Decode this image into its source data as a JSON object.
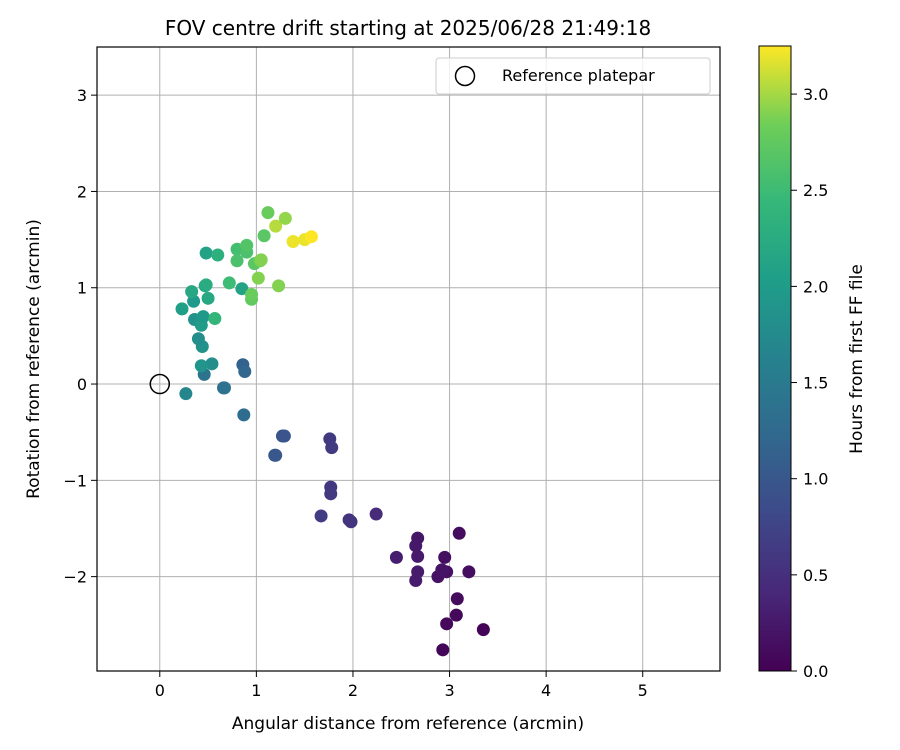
{
  "chart_data": {
    "type": "scatter",
    "title": "FOV centre drift starting at 2025/06/28 21:49:18",
    "xlabel": "Angular distance from reference (arcmin)",
    "ylabel": "Rotation from reference (arcmin)",
    "xlim": [
      -0.65,
      5.8
    ],
    "ylim": [
      -2.98,
      3.5
    ],
    "xticks": [
      0,
      1,
      2,
      3,
      4,
      5
    ],
    "xtick_labels": [
      "0",
      "1",
      "2",
      "3",
      "4",
      "5"
    ],
    "yticks": [
      -2,
      -1,
      0,
      1,
      2,
      3
    ],
    "ytick_labels": [
      "−2",
      "−1",
      "0",
      "1",
      "2",
      "3"
    ],
    "grid": true,
    "legend": {
      "label": "Reference platepar",
      "position": "top-right"
    },
    "reference_point": {
      "x": 0,
      "y": 0
    },
    "colorbar": {
      "label": "Hours from first FF file",
      "range": [
        0,
        3.25
      ],
      "ticks": [
        "0.0",
        "0.5",
        "1.0",
        "1.5",
        "2.0",
        "2.5",
        "3.0"
      ],
      "tick_values": [
        0,
        0.5,
        1,
        1.5,
        2,
        2.5,
        3
      ],
      "colormap": "viridis"
    },
    "points": [
      {
        "x": 3.35,
        "y": -2.55,
        "h": 0.02
      },
      {
        "x": 2.93,
        "y": -2.76,
        "h": 0.05
      },
      {
        "x": 2.97,
        "y": -2.49,
        "h": 0.07
      },
      {
        "x": 3.07,
        "y": -2.4,
        "h": 0.08
      },
      {
        "x": 3.08,
        "y": -2.23,
        "h": 0.1
      },
      {
        "x": 3.1,
        "y": -1.55,
        "h": 0.12
      },
      {
        "x": 3.2,
        "y": -1.95,
        "h": 0.13
      },
      {
        "x": 2.95,
        "y": -1.8,
        "h": 0.15
      },
      {
        "x": 2.97,
        "y": -1.95,
        "h": 0.17
      },
      {
        "x": 2.88,
        "y": -2.0,
        "h": 0.18
      },
      {
        "x": 2.92,
        "y": -1.93,
        "h": 0.2
      },
      {
        "x": 2.67,
        "y": -1.6,
        "h": 0.22
      },
      {
        "x": 2.65,
        "y": -1.68,
        "h": 0.24
      },
      {
        "x": 2.67,
        "y": -1.79,
        "h": 0.26
      },
      {
        "x": 2.67,
        "y": -1.95,
        "h": 0.27
      },
      {
        "x": 2.65,
        "y": -2.04,
        "h": 0.28
      },
      {
        "x": 2.45,
        "y": -1.8,
        "h": 0.3
      },
      {
        "x": 2.24,
        "y": -1.35,
        "h": 0.45
      },
      {
        "x": 1.96,
        "y": -1.41,
        "h": 0.55
      },
      {
        "x": 1.98,
        "y": -1.43,
        "h": 0.57
      },
      {
        "x": 1.67,
        "y": -1.37,
        "h": 0.65
      },
      {
        "x": 1.77,
        "y": -1.07,
        "h": 0.6
      },
      {
        "x": 1.77,
        "y": -1.14,
        "h": 0.62
      },
      {
        "x": 1.76,
        "y": -0.57,
        "h": 0.63
      },
      {
        "x": 1.78,
        "y": -0.66,
        "h": 0.64
      },
      {
        "x": 1.29,
        "y": -0.54,
        "h": 0.95
      },
      {
        "x": 1.27,
        "y": -0.54,
        "h": 0.97
      },
      {
        "x": 1.2,
        "y": -0.74,
        "h": 0.98
      },
      {
        "x": 1.19,
        "y": -0.74,
        "h": 1.0
      },
      {
        "x": 0.87,
        "y": -0.32,
        "h": 1.3
      },
      {
        "x": 0.86,
        "y": 0.2,
        "h": 1.15
      },
      {
        "x": 0.88,
        "y": 0.13,
        "h": 1.2
      },
      {
        "x": 0.66,
        "y": -0.04,
        "h": 1.35
      },
      {
        "x": 0.67,
        "y": -0.04,
        "h": 1.38
      },
      {
        "x": 0.46,
        "y": 0.1,
        "h": 1.4
      },
      {
        "x": 0.27,
        "y": -0.1,
        "h": 1.7
      },
      {
        "x": 0.54,
        "y": 0.21,
        "h": 1.8
      },
      {
        "x": 0.43,
        "y": 0.19,
        "h": 1.9
      },
      {
        "x": 0.44,
        "y": 0.39,
        "h": 1.85
      },
      {
        "x": 0.4,
        "y": 0.47,
        "h": 1.8
      },
      {
        "x": 0.36,
        "y": 0.67,
        "h": 1.85
      },
      {
        "x": 0.43,
        "y": 0.61,
        "h": 2.0
      },
      {
        "x": 0.45,
        "y": 0.7,
        "h": 1.95
      },
      {
        "x": 0.23,
        "y": 0.78,
        "h": 2.05
      },
      {
        "x": 0.35,
        "y": 0.86,
        "h": 1.98
      },
      {
        "x": 0.33,
        "y": 0.96,
        "h": 2.2
      },
      {
        "x": 0.47,
        "y": 1.02,
        "h": 2.15
      },
      {
        "x": 0.48,
        "y": 1.03,
        "h": 2.25
      },
      {
        "x": 0.5,
        "y": 0.89,
        "h": 2.2
      },
      {
        "x": 0.57,
        "y": 0.68,
        "h": 2.4
      },
      {
        "x": 0.48,
        "y": 1.36,
        "h": 2.1
      },
      {
        "x": 0.6,
        "y": 1.34,
        "h": 2.3
      },
      {
        "x": 0.72,
        "y": 1.05,
        "h": 2.5
      },
      {
        "x": 0.85,
        "y": 0.99,
        "h": 2.1
      },
      {
        "x": 0.8,
        "y": 1.4,
        "h": 2.55
      },
      {
        "x": 0.8,
        "y": 1.28,
        "h": 2.6
      },
      {
        "x": 0.9,
        "y": 1.37,
        "h": 2.6
      },
      {
        "x": 0.9,
        "y": 1.44,
        "h": 2.65
      },
      {
        "x": 0.95,
        "y": 0.88,
        "h": 2.75
      },
      {
        "x": 0.95,
        "y": 0.93,
        "h": 2.8
      },
      {
        "x": 0.98,
        "y": 1.25,
        "h": 2.7
      },
      {
        "x": 1.02,
        "y": 1.1,
        "h": 2.9
      },
      {
        "x": 1.04,
        "y": 1.28,
        "h": 2.85
      },
      {
        "x": 1.05,
        "y": 1.29,
        "h": 2.9
      },
      {
        "x": 1.08,
        "y": 1.54,
        "h": 2.7
      },
      {
        "x": 1.12,
        "y": 1.78,
        "h": 2.8
      },
      {
        "x": 1.23,
        "y": 1.02,
        "h": 2.9
      },
      {
        "x": 1.2,
        "y": 1.64,
        "h": 3.05
      },
      {
        "x": 1.3,
        "y": 1.72,
        "h": 2.95
      },
      {
        "x": 1.38,
        "y": 1.48,
        "h": 3.2
      },
      {
        "x": 1.5,
        "y": 1.5,
        "h": 3.2
      },
      {
        "x": 1.57,
        "y": 1.53,
        "h": 3.25
      }
    ]
  }
}
